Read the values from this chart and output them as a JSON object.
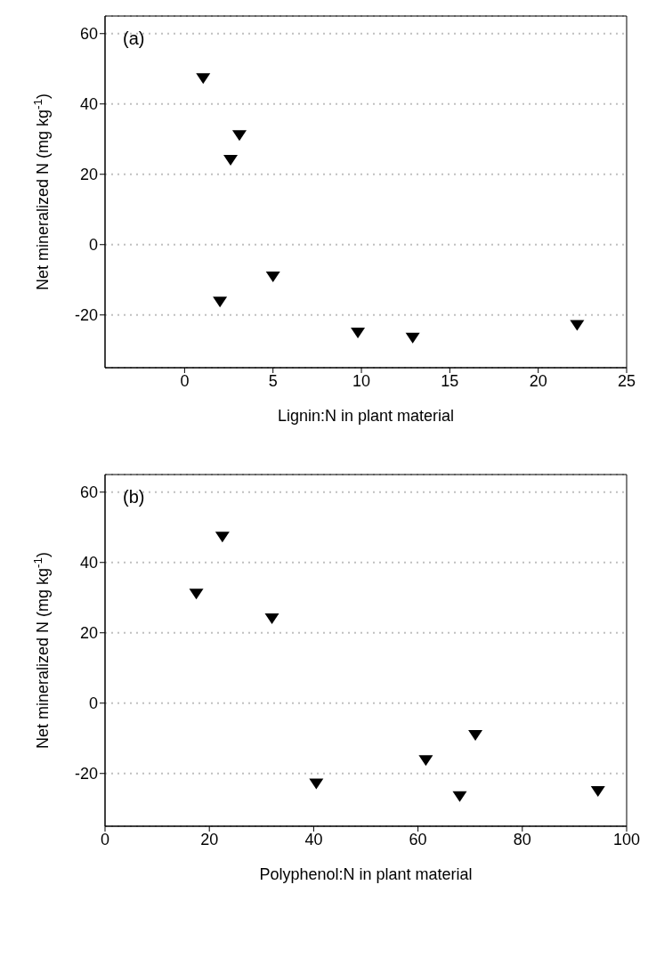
{
  "chart_data": [
    {
      "type": "scatter",
      "x": [
        1.05,
        3.1,
        2.6,
        5.0,
        2.0,
        9.8,
        12.9,
        22.2
      ],
      "values": [
        47.5,
        31.3,
        24.3,
        -8.9,
        -16,
        -24.8,
        -26.3,
        -22.7
      ],
      "color": "#000000",
      "marker": "triangle",
      "xlabel": "Lignin:N in plant material",
      "ylabel": "Net mineralized N (mg kg$^{-1}$)",
      "annotations": [
        "(a)"
      ],
      "xlim": [
        -4.5,
        25
      ],
      "xticks": [
        0,
        5,
        10,
        15,
        20,
        25
      ],
      "ylim": [
        -35,
        65
      ],
      "yticks": [
        -20,
        0,
        20,
        40,
        60
      ],
      "grid": "y",
      "legend": false
    },
    {
      "type": "scatter",
      "x": [
        17.5,
        22.5,
        32,
        40.5,
        61.5,
        68,
        71,
        94.5
      ],
      "values": [
        31.3,
        47.5,
        24.3,
        -22.7,
        -16,
        -26.3,
        -8.9,
        -24.8
      ],
      "color": "#000000",
      "marker": "triangle",
      "xlabel": "Polyphenol:N in plant material",
      "ylabel": "Net mineralized N (mg kg$^{-1}$)",
      "annotations": [
        "(b)"
      ],
      "xlim": [
        0,
        100
      ],
      "xticks": [
        0,
        20,
        40,
        60,
        80,
        100
      ],
      "ylim": [
        -35,
        65
      ],
      "yticks": [
        -20,
        0,
        20,
        40,
        60
      ],
      "grid": "y",
      "legend": false
    }
  ]
}
